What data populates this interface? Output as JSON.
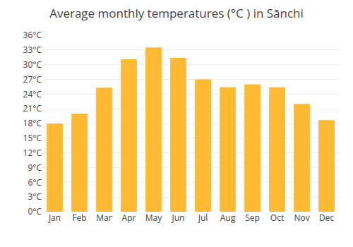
{
  "chart_data": {
    "type": "bar",
    "title": "Average monthly temperatures (°C ) in Sānchi",
    "categories": [
      "Jan",
      "Feb",
      "Mar",
      "Apr",
      "May",
      "Jun",
      "Jul",
      "Aug",
      "Sep",
      "Oct",
      "Nov",
      "Dec"
    ],
    "values": [
      18,
      20,
      25.3,
      31.1,
      33.5,
      31.4,
      27,
      25.4,
      26,
      25.4,
      22,
      18.7
    ],
    "color": "#FFB933",
    "ylim": [
      0,
      36
    ],
    "yticks": [
      {
        "value": 0,
        "label": "0°C"
      },
      {
        "value": 3,
        "label": "3°C"
      },
      {
        "value": 6,
        "label": "6°C"
      },
      {
        "value": 9,
        "label": "9°C"
      },
      {
        "value": 12,
        "label": "12°C"
      },
      {
        "value": 15,
        "label": "15°C"
      },
      {
        "value": 18,
        "label": "18°C"
      },
      {
        "value": 21,
        "label": "21°C"
      },
      {
        "value": 24,
        "label": "24°C"
      },
      {
        "value": 27,
        "label": "27°C"
      },
      {
        "value": 30,
        "label": "30°C"
      },
      {
        "value": 33,
        "label": "33°C"
      },
      {
        "value": 36,
        "label": "36°C"
      }
    ],
    "grid": true
  }
}
